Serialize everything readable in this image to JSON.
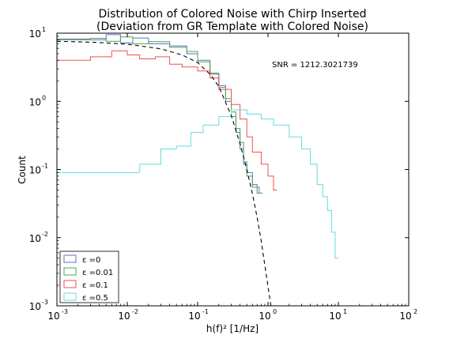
{
  "chart_data": {
    "type": "line",
    "title": "Distribution of Colored Noise with Chirp Inserted",
    "subtitle": "(Deviation from GR Template with Colored Noise)",
    "xlabel": "h(f)²  [1/Hz]",
    "ylabel": "Count",
    "xscale": "log",
    "yscale": "log",
    "xlim": [
      0.001,
      100
    ],
    "ylim": [
      0.001,
      10
    ],
    "grid": false,
    "legend_position": "lower-left",
    "x_ticks": [
      {
        "base": "10",
        "exp": "-3"
      },
      {
        "base": "10",
        "exp": "-2"
      },
      {
        "base": "10",
        "exp": "-1"
      },
      {
        "base": "10",
        "exp": "0"
      },
      {
        "base": "10",
        "exp": "1"
      },
      {
        "base": "10",
        "exp": "2"
      }
    ],
    "y_ticks": [
      {
        "base": "10",
        "exp": "-3"
      },
      {
        "base": "10",
        "exp": "-2"
      },
      {
        "base": "10",
        "exp": "-1"
      },
      {
        "base": "10",
        "exp": "0"
      },
      {
        "base": "10",
        "exp": "1"
      }
    ],
    "annotations": [
      {
        "text": "SNR = 1212.3021739",
        "x": 1.2,
        "y": 3.2
      }
    ],
    "series": [
      {
        "name": "ε =0",
        "style": "step",
        "color": "#5b6fd6",
        "x": [
          0.001,
          0.003,
          0.005,
          0.008,
          0.012,
          0.02,
          0.04,
          0.07,
          0.1,
          0.15,
          0.2,
          0.25,
          0.3,
          0.35,
          0.4,
          0.45,
          0.5,
          0.6,
          0.7
        ],
        "values": [
          8.2,
          8.0,
          9.5,
          7.2,
          8.5,
          7.0,
          6.5,
          5.0,
          4.0,
          2.5,
          1.7,
          1.0,
          0.6,
          0.35,
          0.2,
          0.12,
          0.09,
          0.06,
          0.045
        ]
      },
      {
        "name": "ε =0.01",
        "style": "step",
        "color": "#4ca64c",
        "x": [
          0.001,
          0.003,
          0.005,
          0.008,
          0.012,
          0.02,
          0.04,
          0.07,
          0.1,
          0.15,
          0.2,
          0.25,
          0.3,
          0.35,
          0.4,
          0.45,
          0.5,
          0.6,
          0.75
        ],
        "values": [
          8.0,
          8.4,
          7.6,
          8.8,
          7.0,
          7.5,
          6.2,
          5.4,
          3.8,
          2.6,
          1.6,
          1.1,
          0.7,
          0.4,
          0.25,
          0.13,
          0.08,
          0.055,
          0.045
        ]
      },
      {
        "name": "ε =0.1",
        "style": "step",
        "color": "#f05050",
        "x": [
          0.001,
          0.003,
          0.006,
          0.01,
          0.015,
          0.025,
          0.04,
          0.06,
          0.1,
          0.15,
          0.2,
          0.3,
          0.4,
          0.5,
          0.6,
          0.8,
          1.0,
          1.2
        ],
        "values": [
          4.0,
          4.5,
          5.5,
          4.8,
          4.2,
          4.5,
          3.5,
          3.2,
          2.8,
          2.2,
          1.5,
          0.9,
          0.55,
          0.3,
          0.18,
          0.12,
          0.08,
          0.05
        ]
      },
      {
        "name": "ε =0.5",
        "style": "step",
        "color": "#66dcdc",
        "x": [
          0.001,
          0.005,
          0.015,
          0.03,
          0.05,
          0.08,
          0.12,
          0.2,
          0.3,
          0.5,
          0.8,
          1.2,
          2.0,
          3.0,
          4.0,
          5.0,
          6.0,
          7.0,
          8.0,
          9.0
        ],
        "values": [
          0.09,
          0.09,
          0.12,
          0.2,
          0.22,
          0.35,
          0.45,
          0.6,
          0.75,
          0.65,
          0.55,
          0.45,
          0.3,
          0.2,
          0.12,
          0.06,
          0.04,
          0.025,
          0.012,
          0.005
        ]
      },
      {
        "name": "",
        "style": "dashed",
        "color": "#000000",
        "x": [
          0.001,
          0.003,
          0.01,
          0.03,
          0.06,
          0.1,
          0.15,
          0.2,
          0.3,
          0.4,
          0.5,
          0.6,
          0.7,
          0.8,
          0.9,
          1.0,
          1.1
        ],
        "values": [
          7.6,
          7.4,
          6.9,
          5.9,
          4.8,
          3.7,
          2.5,
          1.65,
          0.62,
          0.24,
          0.1,
          0.044,
          0.02,
          0.009,
          0.004,
          0.0019,
          0.001
        ]
      }
    ]
  }
}
